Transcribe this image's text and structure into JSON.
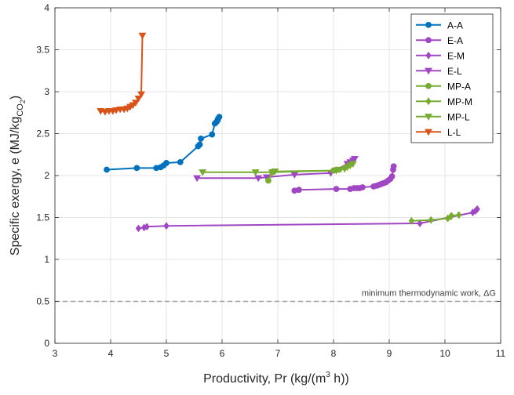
{
  "chart_data": {
    "type": "line",
    "xlabel": "Productivity, Pr (kg/(m",
    "xlabel_sup": "3",
    "xlabel_end": " h))",
    "ylabel": "Specific exergy, e (MJ/kg",
    "ylabel_sub": "CO",
    "ylabel_subsub": "2",
    "ylabel_end": ")",
    "xlim": [
      3,
      11
    ],
    "ylim": [
      0,
      4
    ],
    "xticks": [
      3,
      4,
      5,
      6,
      7,
      8,
      9,
      10,
      11
    ],
    "yticks": [
      0,
      0.5,
      1,
      1.5,
      2,
      2.5,
      3,
      3.5,
      4
    ],
    "grid": true,
    "legend_position": "top-right",
    "reference_line": {
      "y": 0.5,
      "label": "minimum thermodynamic work, ΔG",
      "color": "#999999"
    },
    "series": [
      {
        "name": "A-A",
        "color": "#0072BD",
        "marker": "circle",
        "x": [
          3.93,
          4.47,
          4.82,
          4.9,
          4.95,
          5.0,
          5.25,
          5.57,
          5.6,
          5.62,
          5.82,
          5.87,
          5.9,
          5.92,
          5.93,
          5.95
        ],
        "y": [
          2.07,
          2.09,
          2.09,
          2.1,
          2.12,
          2.15,
          2.16,
          2.35,
          2.37,
          2.44,
          2.49,
          2.62,
          2.64,
          2.66,
          2.68,
          2.7
        ]
      },
      {
        "name": "E-A",
        "color": "#A047C4",
        "marker": "circle",
        "x": [
          7.3,
          7.38,
          8.05,
          8.3,
          8.37,
          8.42,
          8.47,
          8.52,
          8.72,
          8.78,
          8.82,
          8.86,
          8.9,
          8.94,
          8.98,
          9.02,
          9.05,
          9.07,
          9.08
        ],
        "y": [
          1.82,
          1.83,
          1.84,
          1.84,
          1.85,
          1.85,
          1.85,
          1.86,
          1.87,
          1.88,
          1.89,
          1.9,
          1.91,
          1.92,
          1.94,
          1.96,
          1.99,
          2.07,
          2.11
        ]
      },
      {
        "name": "E-M",
        "color": "#A047C4",
        "marker": "diamond",
        "x": [
          4.5,
          4.6,
          4.65,
          5.0,
          9.55,
          10.5,
          10.55,
          10.58
        ],
        "y": [
          1.37,
          1.38,
          1.39,
          1.4,
          1.43,
          1.56,
          1.58,
          1.6
        ]
      },
      {
        "name": "E-L",
        "color": "#A047C4",
        "marker": "triangle-down",
        "x": [
          5.55,
          6.65,
          6.8,
          7.3,
          7.95,
          8.25,
          8.3,
          8.35,
          8.38
        ],
        "y": [
          1.97,
          1.97,
          1.98,
          2.01,
          2.03,
          2.14,
          2.16,
          2.18,
          2.2
        ]
      },
      {
        "name": "MP-A",
        "color": "#77AC30",
        "marker": "circle",
        "x": [
          6.83,
          6.9,
          8.0,
          8.05,
          8.1
        ],
        "y": [
          1.94,
          2.04,
          2.06,
          2.07,
          2.07
        ]
      },
      {
        "name": "MP-M",
        "color": "#77AC30",
        "marker": "diamond",
        "x": [
          9.4,
          9.75,
          10.05,
          10.1,
          10.12,
          10.25
        ],
        "y": [
          1.46,
          1.47,
          1.49,
          1.51,
          1.52,
          1.53
        ]
      },
      {
        "name": "MP-L",
        "color": "#77AC30",
        "marker": "triangle-down",
        "x": [
          5.65,
          6.6,
          6.9,
          6.95,
          8.05,
          8.2,
          8.25,
          8.3,
          8.35
        ],
        "y": [
          2.04,
          2.04,
          2.04,
          2.05,
          2.06,
          2.08,
          2.1,
          2.12,
          2.14
        ]
      },
      {
        "name": "L-L",
        "color": "#D95319",
        "marker": "triangle-down",
        "x": [
          3.82,
          3.9,
          3.97,
          4.04,
          4.1,
          4.17,
          4.24,
          4.3,
          4.35,
          4.4,
          4.45,
          4.5,
          4.55,
          4.57
        ],
        "y": [
          2.77,
          2.76,
          2.77,
          2.77,
          2.78,
          2.79,
          2.79,
          2.8,
          2.82,
          2.84,
          2.87,
          2.92,
          2.97,
          3.67
        ]
      }
    ]
  }
}
